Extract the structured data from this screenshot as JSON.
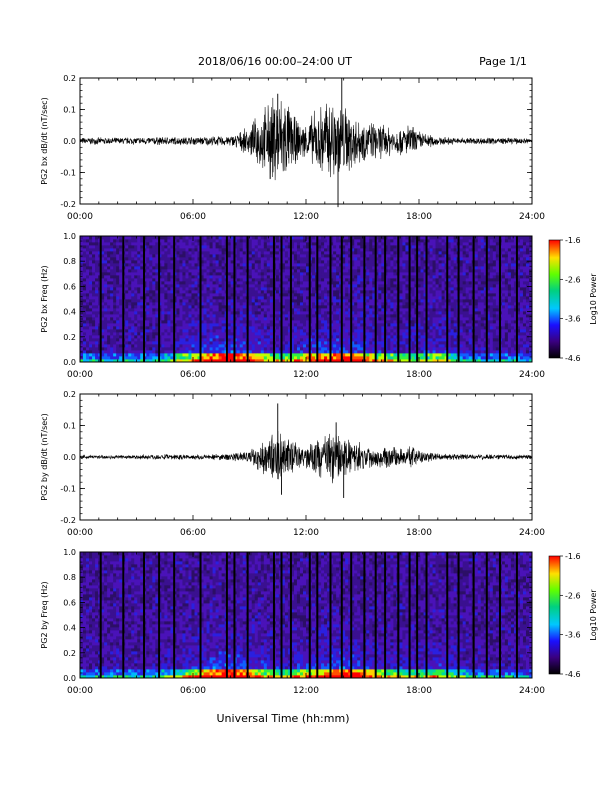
{
  "header": {
    "title": "2018/06/16  00:00–24:00 UT",
    "page": "Page 1/1"
  },
  "footer": {
    "xlabel": "Universal Time (hh:mm)"
  },
  "chart_data": [
    {
      "type": "line",
      "ylabel": "PG2 bx dB/dt (nT/sec)",
      "xlim": [
        0,
        24
      ],
      "ylim": [
        -0.2,
        0.2
      ],
      "x_ticks": [
        "00:00",
        "06:00",
        "12:00",
        "18:00",
        "24:00"
      ],
      "y_ticks": [
        "-0.2",
        "-0.1",
        "0.0",
        "0.1",
        "0.2"
      ],
      "y_tick_values": [
        -0.2,
        -0.1,
        0,
        0.1,
        0.2
      ],
      "envelope": {
        "hours": [
          0,
          2,
          4,
          6,
          8,
          9,
          9.5,
          10,
          10.5,
          11,
          11.5,
          12,
          12.5,
          13,
          13.5,
          14,
          15,
          16,
          17,
          17.5,
          18,
          19,
          20,
          22,
          24
        ],
        "amplitude": [
          0.01,
          0.01,
          0.012,
          0.012,
          0.015,
          0.04,
          0.08,
          0.11,
          0.15,
          0.12,
          0.06,
          0.05,
          0.09,
          0.12,
          0.13,
          0.11,
          0.06,
          0.05,
          0.04,
          0.05,
          0.03,
          0.012,
          0.01,
          0.01,
          0.008
        ]
      },
      "peaks": {
        "max": 0.2,
        "min": -0.21
      }
    },
    {
      "type": "heatmap",
      "ylabel": "PG2 bx Freq (Hz)",
      "xlim": [
        0,
        24
      ],
      "ylim": [
        0,
        1.0
      ],
      "x_ticks": [
        "00:00",
        "06:00",
        "12:00",
        "18:00",
        "24:00"
      ],
      "y_ticks": [
        "0.0",
        "0.2",
        "0.4",
        "0.6",
        "0.8",
        "1.0"
      ],
      "y_tick_values": [
        0,
        0.2,
        0.4,
        0.6,
        0.8,
        1.0
      ],
      "colorbar": {
        "label": "Log10 Power",
        "ticks": [
          "-1.6",
          "-2.6",
          "-3.6",
          "-4.6"
        ],
        "tick_values": [
          -1.6,
          -2.6,
          -3.6,
          -4.6
        ],
        "range": [
          -4.6,
          -1.6
        ]
      },
      "gap_hours": [
        1.1,
        2.3,
        3.4,
        4.2,
        5.0,
        6.4,
        7.8,
        8.2,
        8.9,
        10.3,
        10.7,
        11.2,
        12.2,
        12.6,
        13.3,
        13.9,
        14.4,
        15.1,
        15.7,
        16.2,
        16.9,
        17.5,
        17.9,
        18.4,
        19.5,
        20.1,
        20.9,
        21.6,
        22.3,
        23.2
      ]
    },
    {
      "type": "line",
      "ylabel": "PG2 by dB/dt (nT/sec)",
      "xlim": [
        0,
        24
      ],
      "ylim": [
        -0.2,
        0.2
      ],
      "x_ticks": [
        "00:00",
        "06:00",
        "12:00",
        "18:00",
        "24:00"
      ],
      "y_ticks": [
        "-0.2",
        "-0.1",
        "0.0",
        "0.1",
        "0.2"
      ],
      "y_tick_values": [
        -0.2,
        -0.1,
        0,
        0.1,
        0.2
      ],
      "envelope": {
        "hours": [
          0,
          2,
          4,
          6,
          8,
          9,
          9.5,
          10,
          10.5,
          11,
          11.5,
          12,
          12.5,
          13,
          13.5,
          14,
          15,
          16,
          17,
          17.5,
          18,
          19,
          20,
          22,
          24
        ],
        "amplitude": [
          0.006,
          0.006,
          0.008,
          0.008,
          0.01,
          0.02,
          0.04,
          0.06,
          0.08,
          0.06,
          0.04,
          0.03,
          0.05,
          0.07,
          0.08,
          0.06,
          0.04,
          0.03,
          0.03,
          0.04,
          0.02,
          0.01,
          0.008,
          0.008,
          0.006
        ]
      },
      "peaks": {
        "max": 0.17,
        "min": -0.13
      }
    },
    {
      "type": "heatmap",
      "ylabel": "PG2 by Freq (Hz)",
      "xlim": [
        0,
        24
      ],
      "ylim": [
        0,
        1.0
      ],
      "x_ticks": [
        "00:00",
        "06:00",
        "12:00",
        "18:00",
        "24:00"
      ],
      "y_ticks": [
        "0.0",
        "0.2",
        "0.4",
        "0.6",
        "0.8",
        "1.0"
      ],
      "y_tick_values": [
        0,
        0.2,
        0.4,
        0.6,
        0.8,
        1.0
      ],
      "colorbar": {
        "label": "Log10 Power",
        "ticks": [
          "-1.6",
          "-2.6",
          "-3.6",
          "-4.6"
        ],
        "tick_values": [
          -1.6,
          -2.6,
          -3.6,
          -4.6
        ],
        "range": [
          -4.6,
          -1.6
        ]
      },
      "gap_hours": [
        1.1,
        2.3,
        3.4,
        4.2,
        5.0,
        6.4,
        7.8,
        8.2,
        8.9,
        10.3,
        10.7,
        11.2,
        12.2,
        12.6,
        13.3,
        13.9,
        14.4,
        15.1,
        15.7,
        16.2,
        16.9,
        17.5,
        17.9,
        18.4,
        19.5,
        20.1,
        20.9,
        21.6,
        22.3,
        23.2
      ]
    }
  ]
}
